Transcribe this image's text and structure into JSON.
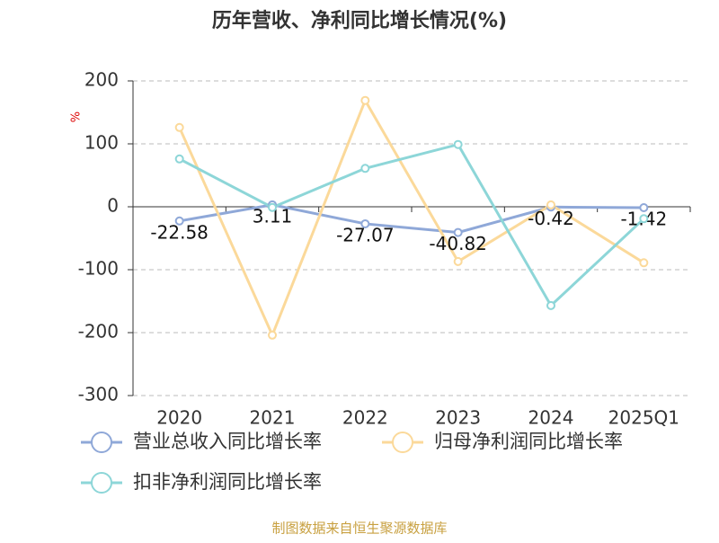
{
  "chart_data": {
    "type": "line",
    "title": "历年营收、净利同比增长情况(%)",
    "y_label": "%",
    "categories": [
      "2020",
      "2021",
      "2022",
      "2023",
      "2024",
      "2025Q1"
    ],
    "series": [
      {
        "name": "营业总收入同比增长率",
        "color": "#8fa8d8",
        "values": [
          -22.58,
          3.11,
          -27.07,
          -40.82,
          -0.42,
          -1.42
        ],
        "show_labels": true
      },
      {
        "name": "归母净利润同比增长率",
        "color": "#fbd99a",
        "values": [
          126,
          -204,
          169,
          -87,
          3,
          -89
        ]
      },
      {
        "name": "扣非净利润同比增长率",
        "color": "#8dd6d8",
        "values": [
          76,
          -1,
          61,
          99,
          -157,
          -19
        ]
      }
    ],
    "ylim": [
      -300,
      200
    ],
    "yticks": [
      -300,
      -200,
      -100,
      0,
      100,
      200
    ],
    "grid": true,
    "source": "制图数据来自恒生聚源数据库"
  }
}
